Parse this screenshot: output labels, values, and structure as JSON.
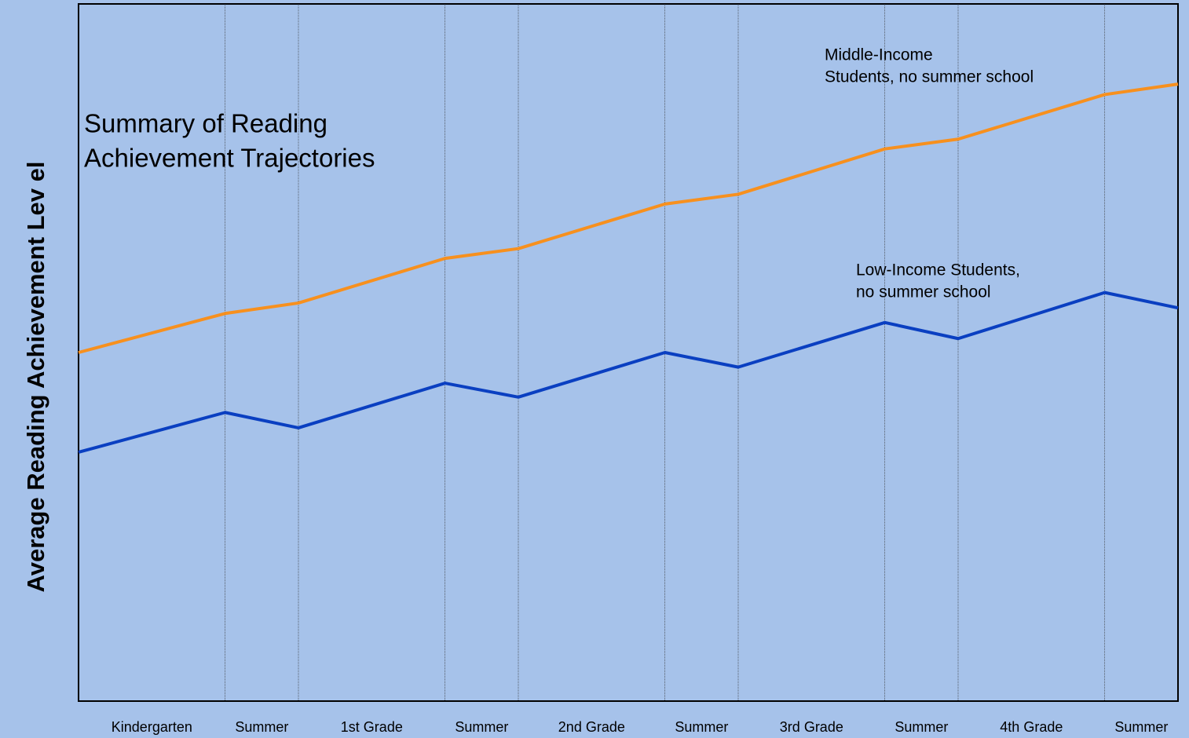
{
  "chart_data": {
    "type": "line",
    "title_lines": [
      "Summary of Reading",
      "Achievement Trajectories"
    ],
    "y_label": "Average Reading Achievement Lev el",
    "periods": [
      "Kindergarten",
      "Summer",
      "1st Grade",
      "Summer",
      "2nd Grade",
      "Summer",
      "3rd Grade",
      "Summer",
      "4th Grade",
      "Summer"
    ],
    "x": [
      0,
      2,
      3,
      5,
      6,
      8,
      9,
      11,
      12,
      14,
      15
    ],
    "xlim": [
      0,
      15
    ],
    "xticks": [
      2,
      3,
      5,
      6,
      8,
      9,
      11,
      12,
      14
    ],
    "ylim": [
      0,
      100
    ],
    "series": [
      {
        "label_lines": [
          "Middle-Income",
          "Students, no summer school"
        ],
        "color": "#f7901e",
        "values": [
          50.0,
          55.6,
          57.1,
          63.5,
          64.9,
          71.3,
          72.7,
          79.2,
          80.6,
          87.0,
          88.5
        ]
      },
      {
        "label_lines": [
          "Low-Income Students,",
          "no summer school"
        ],
        "color": "#0a3fc1",
        "values": [
          35.7,
          41.4,
          39.2,
          45.6,
          43.6,
          50.0,
          47.9,
          54.3,
          52.0,
          58.6,
          56.4
        ]
      }
    ]
  }
}
